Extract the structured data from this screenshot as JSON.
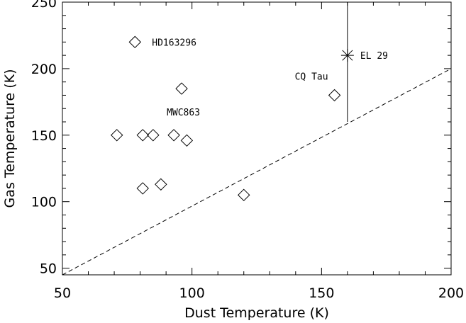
{
  "chart_data": {
    "type": "scatter",
    "xlabel": "Dust Temperature (K)",
    "ylabel": "Gas Temperature (K)",
    "xlim": [
      50,
      200
    ],
    "ylim": [
      45,
      250
    ],
    "x_ticks": [
      "50",
      "100",
      "150",
      "200"
    ],
    "y_ticks": [
      "50",
      "100",
      "150",
      "200",
      "250"
    ],
    "grid": false,
    "series": [
      {
        "marker": "diamond",
        "points": [
          {
            "x": 78,
            "y": 220
          },
          {
            "x": 96,
            "y": 185
          },
          {
            "x": 155,
            "y": 180
          },
          {
            "x": 71,
            "y": 150
          },
          {
            "x": 81,
            "y": 150
          },
          {
            "x": 85,
            "y": 150
          },
          {
            "x": 93,
            "y": 150
          },
          {
            "x": 98,
            "y": 146
          },
          {
            "x": 81,
            "y": 110
          },
          {
            "x": 88,
            "y": 113
          },
          {
            "x": 120,
            "y": 105
          }
        ]
      },
      {
        "marker": "asterisk",
        "points": [
          {
            "x": 160,
            "y": 210,
            "y_range": [
              160,
              250
            ]
          }
        ]
      }
    ],
    "reference_line": {
      "style": "dashed",
      "points": [
        [
          50,
          45
        ],
        [
          200,
          200
        ]
      ]
    },
    "annotations": [
      {
        "text": "HD163296",
        "x": 78,
        "y": 220
      },
      {
        "text": "EL 29",
        "x": 160,
        "y": 210
      },
      {
        "text": "CQ Tau",
        "x": 155,
        "y": 180
      },
      {
        "text": "MWC863",
        "x": 93,
        "y": 150
      }
    ]
  }
}
